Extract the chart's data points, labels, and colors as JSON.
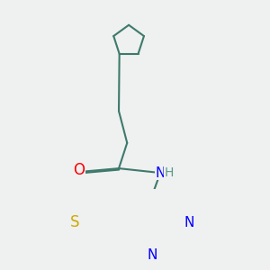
{
  "bg_color": "#eff0f0",
  "bond_color": "#3d7a6b",
  "bond_width": 1.5,
  "atom_colors": {
    "O": "#ff0000",
    "N_amide": "#0000ff",
    "N_ring": "#0000ff",
    "S": "#ccaa00",
    "H": "#5a9a8a"
  },
  "font_size": 10,
  "fig_size": [
    3.0,
    3.0
  ],
  "dpi": 100,
  "xlim": [
    0.0,
    10.0
  ],
  "ylim": [
    0.0,
    10.0
  ]
}
